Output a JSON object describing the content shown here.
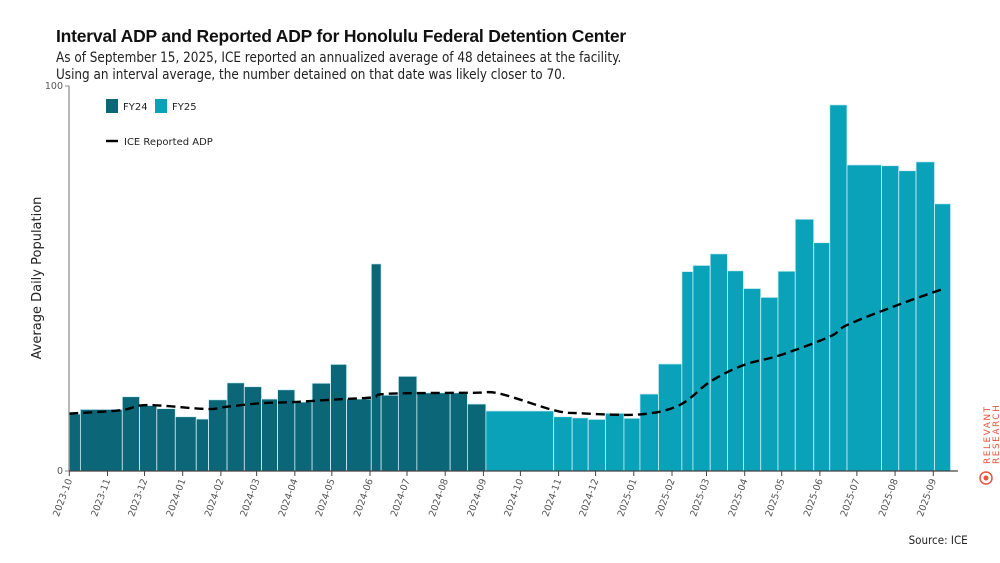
{
  "header": {
    "title": "Interval ADP and Reported ADP for Honolulu Federal Detention Center",
    "subtitle_1": "As of September 15, 2025, ICE reported an annualized average of 48 detainees at the facility.",
    "subtitle_2": "Using an interval average, the number detained on that date was likely closer to 70."
  },
  "source": "Source: ICE",
  "logo": {
    "line1": "RELEVANT",
    "line2": "RESEARCH"
  },
  "colors": {
    "FY24": "#0b6678",
    "FY25": "#0aa2b9",
    "line": "#000000",
    "logo": "#e8533f"
  },
  "chart_data": {
    "type": "bar",
    "title": "Interval ADP and Reported ADP for Honolulu Federal Detention Center",
    "ylabel": "Average Daily Population",
    "xlabel": "",
    "ylim": [
      0,
      100
    ],
    "yticks": [
      "0",
      "100"
    ],
    "xlim": [
      "2023-10-01",
      "2025-09-30"
    ],
    "xticks": [
      "2023-10",
      "2023-11",
      "2023-12",
      "2024-01",
      "2024-02",
      "2024-03",
      "2024-04",
      "2024-05",
      "2024-06",
      "2024-07",
      "2024-08",
      "2024-09",
      "2024-10",
      "2024-11",
      "2024-12",
      "2025-01",
      "2025-02",
      "2025-03",
      "2025-04",
      "2025-05",
      "2025-06",
      "2025-07",
      "2025-08",
      "2025-09"
    ],
    "grid": false,
    "legend": {
      "placement": "top-left",
      "entries": [
        "FY24",
        "FY25",
        "ICE Reported ADP"
      ]
    },
    "bars": [
      {
        "start": "2023-10-01",
        "end": "2023-10-10",
        "value": 14.8,
        "fy": "FY24"
      },
      {
        "start": "2023-10-10",
        "end": "2023-11-13",
        "value": 16.0,
        "fy": "FY24"
      },
      {
        "start": "2023-11-13",
        "end": "2023-11-27",
        "value": 19.3,
        "fy": "FY24"
      },
      {
        "start": "2023-11-27",
        "end": "2023-12-11",
        "value": 17.0,
        "fy": "FY24"
      },
      {
        "start": "2023-12-11",
        "end": "2023-12-26",
        "value": 16.2,
        "fy": "FY24"
      },
      {
        "start": "2023-12-26",
        "end": "2024-01-12",
        "value": 14.1,
        "fy": "FY24"
      },
      {
        "start": "2024-01-12",
        "end": "2024-01-22",
        "value": 13.5,
        "fy": "FY24"
      },
      {
        "start": "2024-01-22",
        "end": "2024-02-06",
        "value": 18.5,
        "fy": "FY24"
      },
      {
        "start": "2024-02-06",
        "end": "2024-02-20",
        "value": 22.9,
        "fy": "FY24"
      },
      {
        "start": "2024-02-20",
        "end": "2024-03-05",
        "value": 21.9,
        "fy": "FY24"
      },
      {
        "start": "2024-03-05",
        "end": "2024-03-18",
        "value": 18.7,
        "fy": "FY24"
      },
      {
        "start": "2024-03-18",
        "end": "2024-04-01",
        "value": 21.1,
        "fy": "FY24"
      },
      {
        "start": "2024-04-01",
        "end": "2024-04-15",
        "value": 17.9,
        "fy": "FY24"
      },
      {
        "start": "2024-04-15",
        "end": "2024-04-30",
        "value": 22.8,
        "fy": "FY24"
      },
      {
        "start": "2024-04-30",
        "end": "2024-05-13",
        "value": 27.7,
        "fy": "FY24"
      },
      {
        "start": "2024-05-13",
        "end": "2024-06-02",
        "value": 18.7,
        "fy": "FY24"
      },
      {
        "start": "2024-06-02",
        "end": "2024-06-10",
        "value": 53.8,
        "fy": "FY24"
      },
      {
        "start": "2024-06-10",
        "end": "2024-06-24",
        "value": 19.7,
        "fy": "FY24"
      },
      {
        "start": "2024-06-24",
        "end": "2024-07-09",
        "value": 24.6,
        "fy": "FY24"
      },
      {
        "start": "2024-07-09",
        "end": "2024-08-05",
        "value": 20.3,
        "fy": "FY24"
      },
      {
        "start": "2024-08-05",
        "end": "2024-08-19",
        "value": 20.3,
        "fy": "FY24"
      },
      {
        "start": "2024-08-19",
        "end": "2024-09-03",
        "value": 17.4,
        "fy": "FY24"
      },
      {
        "start": "2024-09-03",
        "end": "2024-10-28",
        "value": 15.6,
        "fy": "FY25"
      },
      {
        "start": "2024-10-28",
        "end": "2024-11-12",
        "value": 14.1,
        "fy": "FY25"
      },
      {
        "start": "2024-11-12",
        "end": "2024-11-25",
        "value": 13.8,
        "fy": "FY25"
      },
      {
        "start": "2024-11-25",
        "end": "2024-12-09",
        "value": 13.4,
        "fy": "FY25"
      },
      {
        "start": "2024-12-09",
        "end": "2024-12-24",
        "value": 15.0,
        "fy": "FY25"
      },
      {
        "start": "2024-12-24",
        "end": "2025-01-06",
        "value": 13.7,
        "fy": "FY25"
      },
      {
        "start": "2025-01-06",
        "end": "2025-01-21",
        "value": 20.0,
        "fy": "FY25"
      },
      {
        "start": "2025-01-21",
        "end": "2025-02-09",
        "value": 27.8,
        "fy": "FY25"
      },
      {
        "start": "2025-02-09",
        "end": "2025-02-18",
        "value": 51.8,
        "fy": "FY25"
      },
      {
        "start": "2025-02-18",
        "end": "2025-03-04",
        "value": 53.4,
        "fy": "FY25"
      },
      {
        "start": "2025-03-04",
        "end": "2025-03-18",
        "value": 56.4,
        "fy": "FY25"
      },
      {
        "start": "2025-03-18",
        "end": "2025-03-31",
        "value": 52.0,
        "fy": "FY25"
      },
      {
        "start": "2025-03-31",
        "end": "2025-04-14",
        "value": 47.4,
        "fy": "FY25"
      },
      {
        "start": "2025-04-14",
        "end": "2025-04-28",
        "value": 45.1,
        "fy": "FY25"
      },
      {
        "start": "2025-04-28",
        "end": "2025-05-12",
        "value": 51.9,
        "fy": "FY25"
      },
      {
        "start": "2025-05-12",
        "end": "2025-05-27",
        "value": 65.4,
        "fy": "FY25"
      },
      {
        "start": "2025-05-27",
        "end": "2025-06-09",
        "value": 59.3,
        "fy": "FY25"
      },
      {
        "start": "2025-06-09",
        "end": "2025-06-23",
        "value": 95.1,
        "fy": "FY25"
      },
      {
        "start": "2025-06-23",
        "end": "2025-07-21",
        "value": 79.5,
        "fy": "FY25"
      },
      {
        "start": "2025-07-21",
        "end": "2025-08-04",
        "value": 79.3,
        "fy": "FY25"
      },
      {
        "start": "2025-08-04",
        "end": "2025-08-18",
        "value": 78.0,
        "fy": "FY25"
      },
      {
        "start": "2025-08-18",
        "end": "2025-09-02",
        "value": 80.3,
        "fy": "FY25"
      },
      {
        "start": "2025-09-02",
        "end": "2025-09-15",
        "value": 69.4,
        "fy": "FY25"
      }
    ],
    "series": [
      {
        "name": "ICE Reported ADP",
        "style": "dashed",
        "points": [
          [
            "2023-10-01",
            14.9
          ],
          [
            "2023-11-12",
            15.8
          ],
          [
            "2023-11-27",
            17.0
          ],
          [
            "2023-12-14",
            17.0
          ],
          [
            "2024-01-21",
            16.1
          ],
          [
            "2024-02-06",
            16.7
          ],
          [
            "2024-03-04",
            17.6
          ],
          [
            "2024-03-31",
            17.9
          ],
          [
            "2024-05-05",
            18.6
          ],
          [
            "2024-06-03",
            19.1
          ],
          [
            "2024-06-09",
            19.9
          ],
          [
            "2024-07-03",
            20.2
          ],
          [
            "2024-08-24",
            20.3
          ],
          [
            "2024-09-14",
            20.1
          ],
          [
            "2024-10-28",
            15.8
          ],
          [
            "2024-11-18",
            15.0
          ],
          [
            "2025-01-06",
            14.7
          ],
          [
            "2025-02-07",
            17.1
          ],
          [
            "2025-03-04",
            23.2
          ],
          [
            "2025-03-31",
            27.5
          ],
          [
            "2025-04-30",
            30.1
          ],
          [
            "2025-06-09",
            34.9
          ],
          [
            "2025-06-23",
            37.9
          ],
          [
            "2025-08-03",
            43.1
          ],
          [
            "2025-09-09",
            47.3
          ]
        ]
      }
    ]
  }
}
